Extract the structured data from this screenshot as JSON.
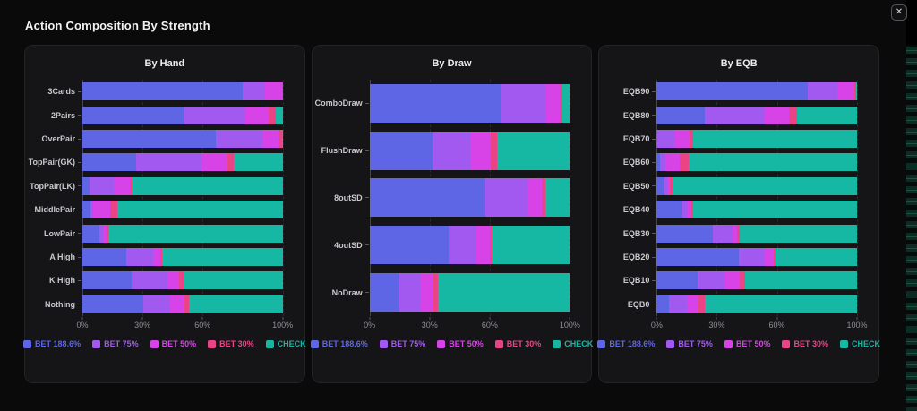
{
  "page": {
    "title": "Action Composition By Strength",
    "close_icon": "✕"
  },
  "colors": {
    "page_bg": "#000000",
    "modal_bg": "#0a0a0b",
    "card_bg": "#151517",
    "bet1886": "#5e66e6",
    "bet75": "#a159ef",
    "bet50": "#d843e8",
    "bet30": "#ea4486",
    "check": "#16b8a3"
  },
  "chart_data": [
    {
      "type": "bar",
      "orientation": "horizontal",
      "stacked": true,
      "title": "By Hand",
      "xlim": [
        0,
        100
      ],
      "grid": "dashed-vertical",
      "legend_position": "bottom",
      "x_ticks": [
        {
          "label": "0%",
          "value": 0
        },
        {
          "label": "30%",
          "value": 30
        },
        {
          "label": "60%",
          "value": 60
        },
        {
          "label": "100%",
          "value": 100
        }
      ],
      "categories": [
        "3Cards",
        "2Pairs",
        "OverPair",
        "TopPair(GK)",
        "TopPair(LK)",
        "MiddlePair",
        "LowPair",
        "A High",
        "K High",
        "Nothing"
      ],
      "series": [
        {
          "name": "BET 188.6%",
          "color": "#5e66e6",
          "values": [
            80,
            51,
            66.5,
            27,
            3.5,
            4,
            8.5,
            22,
            24.5,
            30.5
          ]
        },
        {
          "name": "BET 75%",
          "color": "#a159ef",
          "values": [
            11,
            30,
            23.5,
            32.5,
            12,
            1.5,
            2,
            13.5,
            18,
            13.5
          ]
        },
        {
          "name": "BET 50%",
          "color": "#d843e8",
          "values": [
            8.5,
            12,
            8,
            13,
            8,
            8.5,
            1.5,
            3.5,
            6,
            7
          ]
        },
        {
          "name": "BET 30%",
          "color": "#ea4486",
          "values": [
            0.5,
            3.5,
            1.5,
            3,
            1,
            3.5,
            1,
            1,
            2,
            2
          ]
        },
        {
          "name": "CHECK",
          "color": "#16b8a3",
          "values": [
            0,
            3.5,
            0.5,
            24.5,
            75.5,
            82.5,
            87,
            60,
            49.5,
            47
          ]
        }
      ]
    },
    {
      "type": "bar",
      "orientation": "horizontal",
      "stacked": true,
      "title": "By Draw",
      "xlim": [
        0,
        100
      ],
      "grid": "dashed-vertical",
      "legend_position": "bottom",
      "x_ticks": [
        {
          "label": "0%",
          "value": 0
        },
        {
          "label": "30%",
          "value": 30
        },
        {
          "label": "60%",
          "value": 60
        },
        {
          "label": "100%",
          "value": 100
        }
      ],
      "categories": [
        "ComboDraw",
        "FlushDraw",
        "8outSD",
        "4outSD",
        "NoDraw"
      ],
      "series": [
        {
          "name": "BET 188.6%",
          "color": "#5e66e6",
          "values": [
            66,
            31.5,
            58,
            39.5,
            15
          ]
        },
        {
          "name": "BET 75%",
          "color": "#a159ef",
          "values": [
            22,
            19,
            21.5,
            14,
            10.5
          ]
        },
        {
          "name": "BET 50%",
          "color": "#d843e8",
          "values": [
            7,
            10,
            6.5,
            6.5,
            6.5
          ]
        },
        {
          "name": "BET 30%",
          "color": "#ea4486",
          "values": [
            1.5,
            3,
            2,
            1,
            2
          ]
        },
        {
          "name": "CHECK",
          "color": "#16b8a3",
          "values": [
            3.5,
            36.5,
            12,
            39,
            66
          ]
        }
      ]
    },
    {
      "type": "bar",
      "orientation": "horizontal",
      "stacked": true,
      "title": "By EQB",
      "xlim": [
        0,
        100
      ],
      "grid": "dashed-vertical",
      "legend_position": "bottom",
      "x_ticks": [
        {
          "label": "0%",
          "value": 0
        },
        {
          "label": "30%",
          "value": 30
        },
        {
          "label": "60%",
          "value": 60
        },
        {
          "label": "100%",
          "value": 100
        }
      ],
      "categories": [
        "EQB90",
        "EQB80",
        "EQB70",
        "EQB60",
        "EQB50",
        "EQB40",
        "EQB30",
        "EQB20",
        "EQB10",
        "EQB0"
      ],
      "series": [
        {
          "name": "BET 188.6%",
          "color": "#5e66e6",
          "values": [
            75.5,
            24,
            0.5,
            1.5,
            4,
            13,
            28,
            41,
            20.5,
            6
          ]
        },
        {
          "name": "BET 75%",
          "color": "#a159ef",
          "values": [
            14.5,
            30,
            8.5,
            3,
            1.5,
            2.5,
            10,
            13,
            13.5,
            9
          ]
        },
        {
          "name": "BET 50%",
          "color": "#d843e8",
          "values": [
            8.5,
            12,
            7.5,
            7,
            1,
            2,
            2,
            4.5,
            7.5,
            6
          ]
        },
        {
          "name": "BET 30%",
          "color": "#ea4486",
          "values": [
            1,
            4,
            1.5,
            4.5,
            1.5,
            0.5,
            1.5,
            1,
            2.5,
            3
          ]
        },
        {
          "name": "CHECK",
          "color": "#16b8a3",
          "values": [
            0.5,
            30,
            82,
            84,
            92,
            82,
            58.5,
            40.5,
            56,
            76
          ]
        }
      ]
    }
  ]
}
